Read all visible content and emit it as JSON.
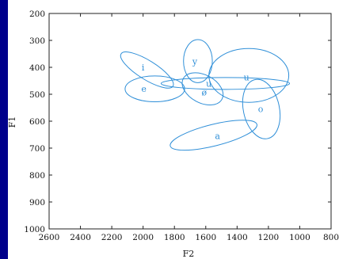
{
  "chart_data": {
    "type": "scatter",
    "title": "",
    "xlabel": "F2",
    "ylabel": "F1",
    "x_axis": {
      "reversed": true,
      "min": 800,
      "max": 2600,
      "ticks": [
        2600,
        2400,
        2200,
        2000,
        1800,
        1600,
        1400,
        1200,
        1000,
        800
      ]
    },
    "y_axis": {
      "reversed": true,
      "min": 200,
      "max": 1000,
      "ticks": [
        200,
        300,
        400,
        500,
        600,
        700,
        800,
        900,
        1000
      ]
    },
    "grid": false,
    "legend": "none",
    "series": [
      {
        "kind": "ellipses",
        "color": "#2f8fd8",
        "items": [
          {
            "label": "i",
            "label_f2": 2000,
            "label_f1": 400,
            "cx_f2": 1975,
            "cy_f1": 410,
            "rx_f2": 195,
            "ry_f1": 35,
            "angle_deg": 32
          },
          {
            "label": "e",
            "label_f2": 1995,
            "label_f1": 480,
            "cx_f2": 1925,
            "cy_f1": 480,
            "rx_f2": 190,
            "ry_f1": 48,
            "angle_deg": 0
          },
          {
            "label": "y",
            "label_f2": 1670,
            "label_f1": 378,
            "cx_f2": 1650,
            "cy_f1": 377,
            "rx_f2": 92,
            "ry_f1": 80,
            "angle_deg": 0
          },
          {
            "label": "u",
            "label_f2": 1580,
            "label_f1": 460,
            "cx_f2": 1475,
            "cy_f1": 460,
            "rx_f2": 410,
            "ry_f1": 22,
            "angle_deg": 0
          },
          {
            "label": "ø",
            "label_f2": 1610,
            "label_f1": 492,
            "cx_f2": 1620,
            "cy_f1": 480,
            "rx_f2": 140,
            "ry_f1": 52,
            "angle_deg": 28
          },
          {
            "label": "u",
            "label_f2": 1340,
            "label_f1": 437,
            "cx_f2": 1325,
            "cy_f1": 430,
            "rx_f2": 255,
            "ry_f1": 100,
            "angle_deg": 0
          },
          {
            "label": "o",
            "label_f2": 1250,
            "label_f1": 555,
            "cx_f2": 1245,
            "cy_f1": 555,
            "rx_f2": 115,
            "ry_f1": 112,
            "angle_deg": -12
          },
          {
            "label": "a",
            "label_f2": 1525,
            "label_f1": 655,
            "cx_f2": 1550,
            "cy_f1": 652,
            "rx_f2": 285,
            "ry_f1": 40,
            "angle_deg": -14
          }
        ]
      }
    ]
  }
}
